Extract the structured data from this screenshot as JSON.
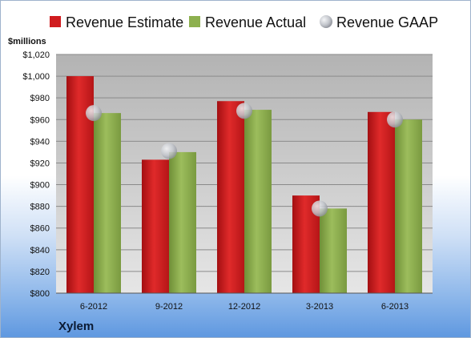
{
  "chart_data": {
    "type": "bar",
    "ylabel": "$millions",
    "company": "Xylem",
    "categories": [
      "6-2012",
      "9-2012",
      "12-2012",
      "3-2013",
      "6-2013"
    ],
    "ylim": [
      800,
      1020
    ],
    "yticks": [
      "$800",
      "$820",
      "$840",
      "$860",
      "$880",
      "$900",
      "$920",
      "$940",
      "$960",
      "$980",
      "$1,000",
      "$1,020"
    ],
    "ytick_values": [
      800,
      820,
      840,
      860,
      880,
      900,
      920,
      940,
      960,
      980,
      1000,
      1020
    ],
    "grid": true,
    "legend_position": "top",
    "series": [
      {
        "name": "Revenue Estimate",
        "kind": "bar",
        "color": "#d01c1f",
        "values": [
          1000,
          923,
          977,
          890,
          967
        ]
      },
      {
        "name": "Revenue Actual",
        "kind": "bar",
        "color": "#8db04f",
        "values": [
          966,
          930,
          969,
          878,
          960
        ]
      },
      {
        "name": "Revenue GAAP",
        "kind": "marker",
        "color": "#c8cbd0",
        "values": [
          966,
          931,
          968,
          878,
          960
        ]
      }
    ]
  }
}
